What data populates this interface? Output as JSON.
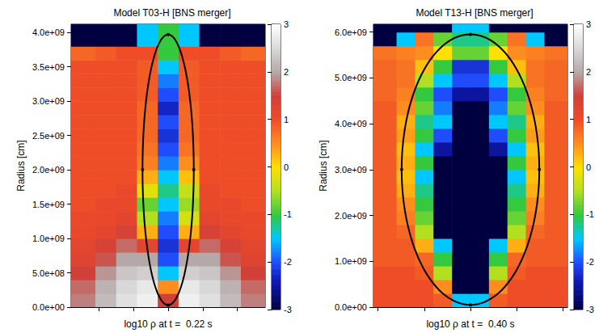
{
  "chart_data": [
    {
      "type": "heatmap",
      "title": "Model T03-H [BNS merger]",
      "xlabel": "log10 ρ at t =  0.22 s",
      "ylabel": "Radius [cm]",
      "xlim": [
        -1400000000.0,
        1400000000.0
      ],
      "xticks": [
        -1000000000.0,
        -500000000.0,
        0,
        500000000.0,
        1000000000.0
      ],
      "ylim": [
        0,
        4120000000.0
      ],
      "yticks": [
        {
          "value": 0,
          "label": "0.0e+00"
        },
        {
          "value": 500000000.0,
          "label": "5.0e+08"
        },
        {
          "value": 1000000000.0,
          "label": "1.0e+09"
        },
        {
          "value": 1500000000.0,
          "label": "1.5e+09"
        },
        {
          "value": 2000000000.0,
          "label": "2.0e+09"
        },
        {
          "value": 2500000000.0,
          "label": "2.5e+09"
        },
        {
          "value": 3000000000.0,
          "label": "3.0e+09"
        },
        {
          "value": 3500000000.0,
          "label": "3.5e+09"
        },
        {
          "value": 4000000000.0,
          "label": "4.0e+09"
        }
      ],
      "tick_labels": "y",
      "field": {
        "xbins": [
          -1400000000.0,
          -1050000000.0,
          -750000000.0,
          -450000000.0,
          -150000000.0,
          150000000.0,
          450000000.0,
          750000000.0,
          1050000000.0,
          1400000000.0
        ],
        "ybins": [
          0,
          200000000.0,
          400000000.0,
          600000000.0,
          800000000.0,
          1000000000.0,
          1200000000.0,
          1400000000.0,
          1600000000.0,
          1800000000.0,
          2000000000.0,
          2200000000.0,
          2400000000.0,
          2600000000.0,
          2800000000.0,
          3000000000.0,
          3200000000.0,
          3400000000.0,
          3600000000.0,
          3800000000.0,
          4120000000.0
        ],
        "values": [
          [
            1.8,
            2.2,
            2.6,
            2.8,
            1.5,
            2.8,
            2.6,
            2.2,
            1.8
          ],
          [
            1.7,
            2.1,
            2.5,
            2.7,
            0.5,
            2.7,
            2.5,
            2.1,
            1.7
          ],
          [
            1.5,
            1.9,
            2.3,
            2.4,
            -1.5,
            2.4,
            2.3,
            1.9,
            1.5
          ],
          [
            1.3,
            1.6,
            2.0,
            2.0,
            -2.0,
            2.0,
            2.0,
            1.6,
            1.3
          ],
          [
            1.2,
            1.4,
            1.7,
            1.2,
            -2.2,
            1.2,
            1.7,
            1.4,
            1.2
          ],
          [
            1.1,
            1.2,
            1.4,
            0.3,
            -2.0,
            0.3,
            1.4,
            1.2,
            1.1
          ],
          [
            1.1,
            1.1,
            1.2,
            -0.5,
            -1.8,
            -0.3,
            1.2,
            1.1,
            1.1
          ],
          [
            1.0,
            1.1,
            1.1,
            -0.8,
            -1.5,
            -0.6,
            1.1,
            1.1,
            1.0
          ],
          [
            1.0,
            1.0,
            1.1,
            -0.2,
            -1.2,
            -0.4,
            1.1,
            1.0,
            1.0
          ],
          [
            1.0,
            1.0,
            1.0,
            0.3,
            -1.5,
            0.2,
            1.0,
            1.0,
            1.0
          ],
          [
            1.0,
            1.0,
            1.0,
            0.6,
            -1.8,
            0.5,
            1.0,
            1.0,
            1.0
          ],
          [
            1.0,
            1.0,
            1.0,
            0.7,
            -2.0,
            0.7,
            1.0,
            1.0,
            1.0
          ],
          [
            1.0,
            1.0,
            1.0,
            0.8,
            -2.2,
            0.8,
            1.0,
            1.0,
            1.0
          ],
          [
            1.0,
            1.0,
            1.0,
            0.8,
            -2.0,
            0.8,
            1.0,
            1.0,
            1.0
          ],
          [
            1.0,
            1.0,
            1.0,
            0.8,
            -2.3,
            0.8,
            1.0,
            1.0,
            1.0
          ],
          [
            1.0,
            1.0,
            1.0,
            0.9,
            -2.0,
            0.9,
            1.0,
            1.0,
            1.0
          ],
          [
            1.0,
            1.0,
            1.0,
            0.9,
            -1.8,
            0.9,
            1.0,
            1.0,
            1.0
          ],
          [
            1.0,
            1.0,
            1.0,
            0.9,
            -1.5,
            0.9,
            1.0,
            1.0,
            1.0
          ],
          [
            0.8,
            0.9,
            1.0,
            1.0,
            -1.0,
            1.0,
            1.0,
            0.9,
            0.8
          ],
          [
            -3,
            -3,
            -3,
            -1.5,
            -1.0,
            -1.5,
            -3,
            -3,
            -3
          ]
        ]
      },
      "colorbar": {
        "range": [
          -3,
          3
        ],
        "ticks": [
          -3,
          -2,
          -1,
          0,
          1,
          2,
          3
        ]
      },
      "ellipse": {
        "center": [
          0,
          2000000000.0
        ],
        "semi_axes": [
          370000000.0,
          1970000000.0
        ]
      }
    },
    {
      "type": "heatmap",
      "title": "Model T13-H [BNS merger]",
      "xlabel": "log10 ρ at t =  0.40 s",
      "ylabel": "Radius [cm]",
      "xlim": [
        -2100000000.0,
        2100000000.0
      ],
      "xticks": [
        -2000000000.0,
        -1000000000.0,
        0,
        1000000000.0,
        2000000000.0
      ],
      "ylim": [
        0,
        6170000000.0
      ],
      "yticks": [
        {
          "value": 0,
          "label": "0.0e+00"
        },
        {
          "value": 1000000000.0,
          "label": "1.0e+09"
        },
        {
          "value": 2000000000.0,
          "label": "2.0e+09"
        },
        {
          "value": 3000000000.0,
          "label": "3.0e+09"
        },
        {
          "value": 4000000000.0,
          "label": "4.0e+09"
        },
        {
          "value": 5000000000.0,
          "label": "5.0e+09"
        },
        {
          "value": 6000000000.0,
          "label": "6.0e+09"
        }
      ],
      "tick_labels": "y",
      "field": {
        "xbins": [
          -2100000000.0,
          -1600000000.0,
          -1200000000.0,
          -800000000.0,
          -400000000.0,
          0,
          400000000.0,
          800000000.0,
          1200000000.0,
          1600000000.0,
          2100000000.0
        ],
        "ybins": [
          0,
          300000000.0,
          600000000.0,
          900000000.0,
          1200000000.0,
          1500000000.0,
          1800000000.0,
          2100000000.0,
          2400000000.0,
          2700000000.0,
          3000000000.0,
          3300000000.0,
          3600000000.0,
          3900000000.0,
          4200000000.0,
          4500000000.0,
          4800000000.0,
          5100000000.0,
          5400000000.0,
          5700000000.0,
          6000000000.0,
          6170000000.0
        ],
        "values": [
          [
            1.0,
            1.0,
            1.0,
            0.9,
            -1.5,
            -1.5,
            0.9,
            1.0,
            1.0,
            1.0
          ],
          [
            1.0,
            1.0,
            1.0,
            0.5,
            -3,
            -3,
            0.5,
            1.0,
            1.0,
            1.0
          ],
          [
            1.0,
            1.0,
            0.9,
            -0.5,
            -3,
            -3,
            -0.5,
            0.9,
            1.0,
            1.0
          ],
          [
            0.9,
            0.9,
            0.8,
            -1.0,
            -3,
            -3,
            -1.0,
            0.8,
            0.9,
            0.9
          ],
          [
            0.9,
            0.9,
            0.3,
            -1.5,
            -3,
            -3,
            -1.5,
            0.3,
            0.9,
            0.9
          ],
          [
            0.9,
            0.8,
            -0.5,
            -3,
            -3,
            -3,
            -3,
            -0.5,
            0.8,
            0.9
          ],
          [
            0.9,
            0.6,
            -0.8,
            -3,
            -3,
            -3,
            -3,
            -0.8,
            0.6,
            0.9
          ],
          [
            0.9,
            0.5,
            -1.0,
            -3,
            -3,
            -3,
            -3,
            -1.0,
            0.5,
            0.9
          ],
          [
            0.9,
            0.3,
            -1.2,
            -3,
            -3,
            -3,
            -3,
            -1.2,
            0.3,
            0.9
          ],
          [
            0.9,
            0.2,
            -1.5,
            -3,
            -3,
            -3,
            -3,
            -1.5,
            0.2,
            0.9
          ],
          [
            0.9,
            0.3,
            -1.0,
            -3,
            -3,
            -3,
            -3,
            -1.0,
            0.3,
            0.9
          ],
          [
            0.9,
            0.2,
            -1.5,
            -2.5,
            -3,
            -3,
            -2.5,
            -1.5,
            0.2,
            0.9
          ],
          [
            0.9,
            0.4,
            -1.0,
            -2.0,
            -3,
            -3,
            -2.0,
            -1.0,
            0.4,
            0.9
          ],
          [
            0.9,
            0.3,
            -1.2,
            -1.5,
            -3,
            -3,
            -1.5,
            -1.2,
            0.3,
            0.9
          ],
          [
            0.9,
            0.5,
            -0.8,
            -1.8,
            -3,
            -3,
            -1.8,
            -0.8,
            0.5,
            0.9
          ],
          [
            0.8,
            0.6,
            -1.0,
            -2.0,
            -2.5,
            -2.5,
            -2.0,
            -1.0,
            0.6,
            0.8
          ],
          [
            0.8,
            0.7,
            -0.5,
            -1.5,
            -2.0,
            -2.0,
            -1.5,
            -0.5,
            0.7,
            0.8
          ],
          [
            0.8,
            0.7,
            0.2,
            -1.0,
            -2.2,
            -2.2,
            -1.0,
            0.2,
            0.7,
            0.8
          ],
          [
            0.7,
            0.6,
            0.5,
            0.0,
            -0.8,
            -0.8,
            0.0,
            0.5,
            0.6,
            0.7
          ],
          [
            -3,
            -1.5,
            0.7,
            -0.8,
            -1.2,
            -1.2,
            -0.8,
            0.7,
            -1.5,
            -3
          ],
          [
            -3,
            -3,
            -3,
            -3,
            -1.5,
            -1.5,
            -3,
            -3,
            -3,
            -3
          ]
        ]
      },
      "colorbar": {
        "range": [
          -3,
          3
        ],
        "ticks": [
          -3,
          -2,
          -1,
          0,
          1,
          2,
          3
        ]
      },
      "ellipse": {
        "center": [
          0,
          3000000000.0
        ],
        "semi_axes": [
          1490000000.0,
          2950000000.0
        ]
      }
    }
  ]
}
